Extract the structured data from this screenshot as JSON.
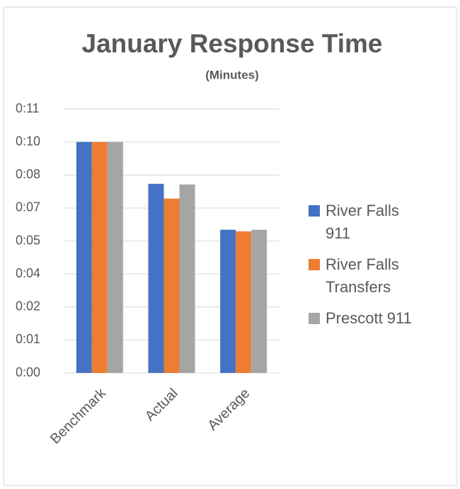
{
  "chart_data": {
    "type": "bar",
    "title": "January Response Time",
    "subtitle": "(Minutes)",
    "categories": [
      "Benchmark",
      "Actual",
      "Average"
    ],
    "series": [
      {
        "name": "River Falls 911",
        "color": "#4472c4",
        "values": [
          10,
          8.19,
          6.2
        ]
      },
      {
        "name": "River Falls Transfers",
        "color": "#ed7d31",
        "values": [
          10,
          7.55,
          6.13
        ]
      },
      {
        "name": "Prescott 911",
        "color": "#a5a5a5",
        "values": [
          10,
          8.16,
          6.2
        ]
      }
    ],
    "ylim": [
      0,
      11.43
    ],
    "yticks": [
      {
        "value": 0,
        "label": "0:00"
      },
      {
        "value": 1.43,
        "label": "0:01"
      },
      {
        "value": 2.86,
        "label": "0:02"
      },
      {
        "value": 4.29,
        "label": "0:04"
      },
      {
        "value": 5.71,
        "label": "0:05"
      },
      {
        "value": 7.14,
        "label": "0:07"
      },
      {
        "value": 8.57,
        "label": "0:08"
      },
      {
        "value": 10,
        "label": "0:10"
      },
      {
        "value": 11.43,
        "label": "0:11"
      }
    ],
    "grid": true,
    "legend": "right"
  }
}
